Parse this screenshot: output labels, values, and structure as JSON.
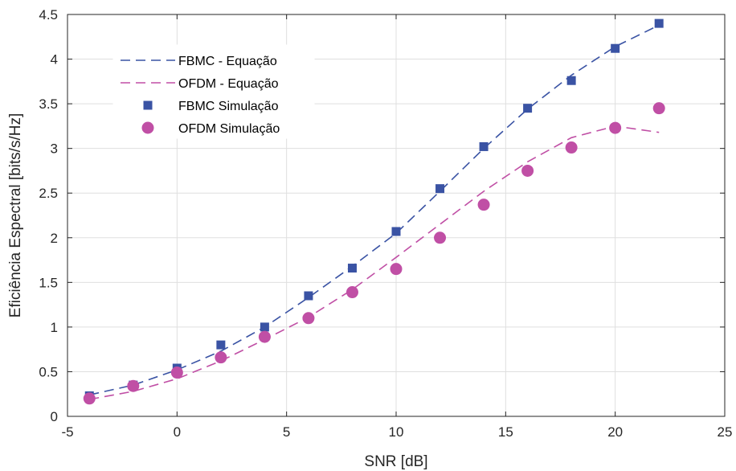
{
  "chart_data": {
    "type": "line",
    "title": "",
    "xlabel": "SNR [dB]",
    "ylabel": "Eficiência Espectral [bits/s/Hz]",
    "xlim": [
      -5,
      25
    ],
    "ylim": [
      0,
      4.5
    ],
    "xticks": [
      -5,
      0,
      5,
      10,
      15,
      20,
      25
    ],
    "yticks": [
      0,
      0.5,
      1,
      1.5,
      2,
      2.5,
      3,
      3.5,
      4,
      4.5
    ],
    "xtick_labels": [
      "-5",
      "0",
      "5",
      "10",
      "15",
      "20",
      "25"
    ],
    "ytick_labels": [
      "0",
      "0.5",
      "1",
      "1.5",
      "2",
      "2.5",
      "3",
      "3.5",
      "4",
      "4.5"
    ],
    "grid": true,
    "legend_position": "top-left",
    "colors": {
      "fbmc": "#3A53A4",
      "ofdm": "#C04FA5"
    },
    "series": [
      {
        "name": "FBMC - Equação",
        "style": "dashed-line",
        "color": "#3A53A4",
        "x": [
          -4,
          -2,
          0,
          2,
          4,
          6,
          8,
          10,
          12,
          14,
          16,
          18,
          20,
          22
        ],
        "y": [
          0.24,
          0.35,
          0.52,
          0.73,
          1.0,
          1.33,
          1.68,
          2.05,
          2.52,
          3.0,
          3.44,
          3.82,
          4.14,
          4.38
        ]
      },
      {
        "name": "OFDM - Equação",
        "style": "dashed-line",
        "color": "#C04FA5",
        "x": [
          -4,
          -2,
          0,
          2,
          4,
          6,
          8,
          10,
          12,
          14,
          16,
          18,
          20,
          22
        ],
        "y": [
          0.19,
          0.28,
          0.42,
          0.62,
          0.86,
          1.11,
          1.42,
          1.78,
          2.15,
          2.52,
          2.85,
          3.12,
          3.25,
          3.18
        ]
      },
      {
        "name": "FBMC Simulação",
        "style": "square-markers",
        "color": "#3A53A4",
        "x": [
          -4,
          -2,
          0,
          2,
          4,
          6,
          8,
          10,
          12,
          14,
          16,
          18,
          20,
          22
        ],
        "y": [
          0.23,
          0.35,
          0.54,
          0.8,
          1.0,
          1.35,
          1.66,
          2.07,
          2.55,
          3.02,
          3.45,
          3.76,
          4.12,
          4.4
        ]
      },
      {
        "name": "OFDM Simulação",
        "style": "circle-markers",
        "color": "#C04FA5",
        "x": [
          -4,
          -2,
          0,
          2,
          4,
          6,
          8,
          10,
          12,
          14,
          16,
          18,
          20,
          22
        ],
        "y": [
          0.2,
          0.34,
          0.49,
          0.66,
          0.89,
          1.1,
          1.39,
          1.65,
          2.0,
          2.37,
          2.75,
          3.01,
          3.23,
          3.45
        ]
      }
    ]
  }
}
